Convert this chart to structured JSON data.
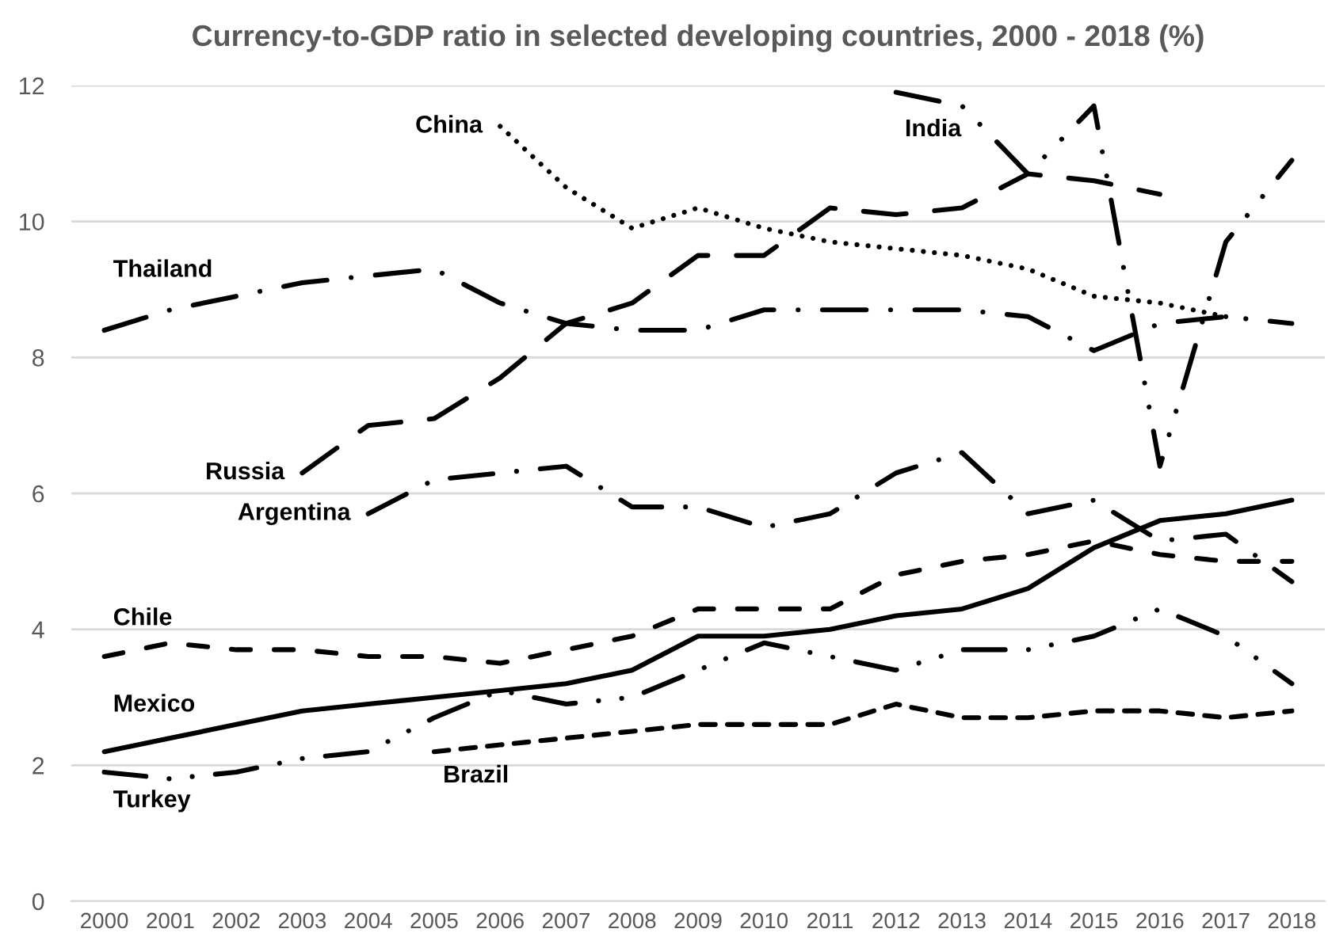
{
  "chart_data": {
    "type": "line",
    "title": "Currency-to-GDP ratio in selected developing countries, 2000 - 2018 (%)",
    "categories": [
      "2000",
      "2001",
      "2002",
      "2003",
      "2004",
      "2005",
      "2006",
      "2007",
      "2008",
      "2009",
      "2010",
      "2011",
      "2012",
      "2013",
      "2014",
      "2015",
      "2016",
      "2017",
      "2018"
    ],
    "ylim": [
      0,
      12
    ],
    "yticks": [
      0,
      2,
      4,
      6,
      8,
      10,
      12
    ],
    "grid": "y",
    "series": [
      {
        "name": "China",
        "color": "#000000",
        "line_style": "dotted",
        "values": [
          null,
          null,
          null,
          null,
          null,
          null,
          11.4,
          10.5,
          9.9,
          10.2,
          9.9,
          9.7,
          9.6,
          9.5,
          9.3,
          8.9,
          8.8,
          8.6,
          null
        ]
      },
      {
        "name": "India",
        "color": "#000000",
        "line_style": "dashed",
        "values": [
          null,
          null,
          null,
          null,
          null,
          null,
          null,
          null,
          null,
          null,
          null,
          null,
          11.9,
          11.7,
          10.7,
          11.7,
          6.4,
          9.7,
          10.9
        ]
      },
      {
        "name": "Thailand",
        "color": "#000000",
        "line_style": "dashed",
        "values": [
          8.4,
          8.7,
          8.9,
          9.1,
          9.2,
          9.3,
          8.8,
          8.5,
          8.4,
          8.4,
          8.7,
          8.7,
          8.7,
          8.7,
          8.6,
          8.1,
          8.5,
          8.6,
          8.5
        ]
      },
      {
        "name": "Russia",
        "color": "#000000",
        "line_style": "dashed",
        "values": [
          null,
          null,
          null,
          6.3,
          7.0,
          7.1,
          7.7,
          8.5,
          8.8,
          9.5,
          9.5,
          10.2,
          10.1,
          10.2,
          10.7,
          10.6,
          10.4,
          null,
          null
        ]
      },
      {
        "name": "Argentina",
        "color": "#000000",
        "line_style": "dashed",
        "values": [
          null,
          null,
          null,
          null,
          5.7,
          6.2,
          6.3,
          6.4,
          5.8,
          5.8,
          5.5,
          5.7,
          6.3,
          6.6,
          5.7,
          5.9,
          5.3,
          5.4,
          4.7
        ]
      },
      {
        "name": "Chile",
        "color": "#000000",
        "line_style": "dashed",
        "values": [
          3.6,
          3.8,
          3.7,
          3.7,
          3.6,
          3.6,
          3.5,
          3.7,
          3.9,
          4.3,
          4.3,
          4.3,
          4.8,
          5.0,
          5.1,
          5.3,
          5.1,
          5.0,
          5.0
        ]
      },
      {
        "name": "Mexico",
        "color": "#000000",
        "line_style": "solid",
        "values": [
          2.2,
          2.4,
          2.6,
          2.8,
          2.9,
          3.0,
          3.1,
          3.2,
          3.4,
          3.9,
          3.9,
          4.0,
          4.2,
          4.3,
          4.6,
          5.2,
          5.6,
          5.7,
          5.9
        ]
      },
      {
        "name": "Brazil",
        "color": "#000000",
        "line_style": "dashed",
        "values": [
          null,
          null,
          null,
          null,
          null,
          2.2,
          2.3,
          2.4,
          2.5,
          2.6,
          2.6,
          2.6,
          2.9,
          2.7,
          2.7,
          2.8,
          2.8,
          2.7,
          2.8
        ]
      },
      {
        "name": "Turkey",
        "color": "#000000",
        "line_style": "dashed",
        "values": [
          1.9,
          1.8,
          1.9,
          2.1,
          2.2,
          2.7,
          3.1,
          2.9,
          3.0,
          3.4,
          3.8,
          3.6,
          3.4,
          3.7,
          3.7,
          3.9,
          4.3,
          3.9,
          3.2
        ]
      }
    ]
  }
}
